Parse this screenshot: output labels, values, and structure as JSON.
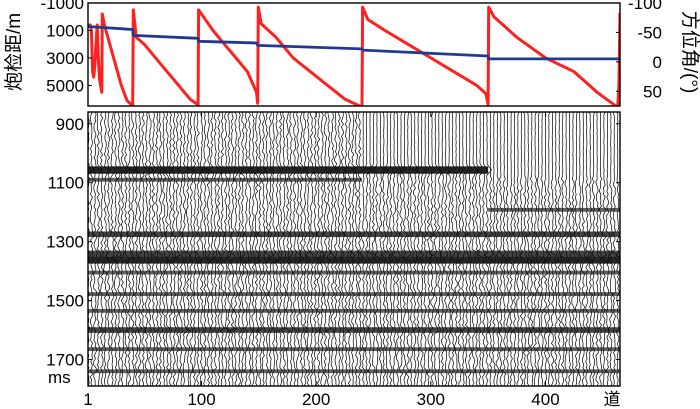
{
  "chart_data": [
    {
      "type": "line",
      "left_axis": {
        "label": "炮检距/m",
        "ticks": [
          "-1000",
          "1000",
          "3000",
          "5000"
        ],
        "tick_values": [
          -1000,
          1000,
          3000,
          5000
        ],
        "range": [
          -1000,
          6500
        ],
        "inverted": true
      },
      "right_axis": {
        "label": "方位角/(°)",
        "ticks": [
          "-100",
          "-50",
          "0",
          "50"
        ],
        "tick_values": [
          -100,
          -50,
          0,
          50
        ],
        "range": [
          -100,
          75
        ],
        "inverted": true
      },
      "x_range": [
        1,
        465
      ],
      "series": [
        {
          "axis": "left",
          "color": "#ff2020",
          "x": [
            1,
            3,
            4,
            5,
            6,
            7,
            8,
            9,
            10,
            11,
            12,
            13,
            13.5,
            15,
            20,
            30,
            35,
            40,
            40.5,
            43,
            50,
            60,
            70,
            80,
            90,
            95,
            97,
            97.5,
            100,
            110,
            120,
            130,
            140,
            148,
            149,
            149.5,
            152,
            165,
            180,
            195,
            210,
            225,
            238,
            240,
            240.5,
            245,
            260,
            280,
            300,
            320,
            340,
            348,
            350,
            350.5,
            355,
            375,
            400,
            425,
            445,
            463,
            464,
            465
          ],
          "y": [
            600,
            600,
            1000,
            4000,
            4400,
            3500,
            2000,
            600,
            3000,
            4500,
            5000,
            5500,
            -200,
            500,
            2000,
            5000,
            6100,
            6500,
            -500,
            1500,
            2000,
            3000,
            4000,
            5000,
            6000,
            6300,
            6400,
            -500,
            -200,
            1000,
            2000,
            3000,
            4000,
            5500,
            6300,
            -700,
            500,
            1500,
            3000,
            4000,
            5000,
            6000,
            6500,
            6600,
            -700,
            200,
            1000,
            2000,
            3000,
            4000,
            5000,
            5600,
            6400,
            -700,
            0,
            1500,
            3000,
            4000,
            5500,
            6600,
            5000,
            -300
          ]
        },
        {
          "axis": "right",
          "color": "#1f3a93",
          "x": [
            1,
            40,
            40.5,
            97,
            97.5,
            148,
            149,
            240,
            240.5,
            350,
            350.5,
            420,
            465
          ],
          "y": [
            -60,
            -55,
            -45,
            -40,
            -35,
            -32,
            -28,
            -22,
            -20,
            -10,
            -5,
            -5,
            -5
          ]
        }
      ]
    },
    {
      "type": "heatmap",
      "x_ticks": [
        "1",
        "100",
        "200",
        "300",
        "400"
      ],
      "x_tick_values": [
        1,
        100,
        200,
        300,
        400
      ],
      "x_end_label": "道",
      "x_range": [
        1,
        465
      ],
      "y_ticks": [
        "900",
        "1100",
        "1300",
        "1500",
        "1700"
      ],
      "y_tick_values": [
        900,
        1100,
        1300,
        1500,
        1700
      ],
      "y_unit_label": "ms",
      "y_range": [
        860,
        1790
      ],
      "inverted": true,
      "reflectors": [
        {
          "t": 1057,
          "x_from": 1,
          "x_to": 350,
          "strength": 3
        },
        {
          "t": 1090,
          "x_from": 1,
          "x_to": 240,
          "strength": 1
        },
        {
          "t": 1192,
          "x_from": 350,
          "x_to": 465,
          "strength": 1
        },
        {
          "t": 1275,
          "x_from": 1,
          "x_to": 465,
          "strength": 2
        },
        {
          "t": 1340,
          "x_from": 1,
          "x_to": 465,
          "strength": 2
        },
        {
          "t": 1362,
          "x_from": 1,
          "x_to": 465,
          "strength": 3
        },
        {
          "t": 1405,
          "x_from": 1,
          "x_to": 465,
          "strength": 1
        },
        {
          "t": 1478,
          "x_from": 1,
          "x_to": 465,
          "strength": 1
        },
        {
          "t": 1535,
          "x_from": 1,
          "x_to": 465,
          "strength": 1
        },
        {
          "t": 1600,
          "x_from": 1,
          "x_to": 465,
          "strength": 2
        },
        {
          "t": 1665,
          "x_from": 1,
          "x_to": 465,
          "strength": 1
        },
        {
          "t": 1740,
          "x_from": 1,
          "x_to": 465,
          "strength": 1
        }
      ],
      "quiet_zones": [
        {
          "x_from": 240,
          "x_to": 350,
          "t_from": 870,
          "t_to": 1040
        },
        {
          "x_from": 350,
          "x_to": 465,
          "t_from": 870,
          "t_to": 1085
        }
      ]
    }
  ]
}
